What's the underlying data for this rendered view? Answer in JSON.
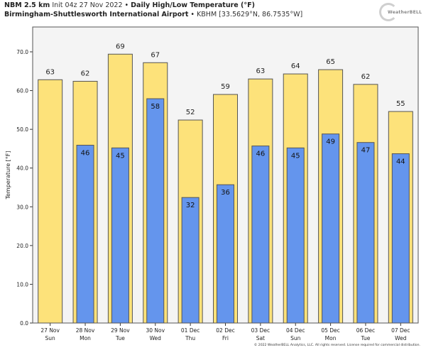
{
  "header": {
    "model": "NBM 2.5 km",
    "init": "Init 04z 27 Nov 2022",
    "separator": "•",
    "product": "Daily High/Low Temperature (°F)",
    "location": "Birmingham-Shuttlesworth International Airport",
    "station": "KBHM [33.5629°N, 86.7535°W]"
  },
  "logo": {
    "text": "WeatherBELL"
  },
  "footer": {
    "copyright": "© 2022 WeatherBELL Analytics, LLC. All rights reserved. License required for commercial distribution."
  },
  "colors": {
    "high": "#fde27a",
    "low": "#6495ed",
    "plot_bg": "#f4f4f4",
    "edge": "#555555"
  },
  "chart_data": {
    "type": "bar",
    "title": "Daily High/Low Temperature (°F)",
    "xlabel": "",
    "ylabel": "Temperature [°F]",
    "ylim": [
      0,
      75
    ],
    "yticks": [
      "0.0",
      "10.0",
      "20.0",
      "30.0",
      "40.0",
      "50.0",
      "60.0",
      "70.0"
    ],
    "categories": [
      "27 Nov",
      "28 Nov",
      "29 Nov",
      "30 Nov",
      "01 Dec",
      "02 Dec",
      "03 Dec",
      "04 Dec",
      "05 Dec",
      "06 Dec",
      "07 Dec"
    ],
    "weekdays": [
      "Sun",
      "Mon",
      "Tue",
      "Wed",
      "Thu",
      "Fri",
      "Sat",
      "Sun",
      "Mon",
      "Tue",
      "Wed"
    ],
    "series": [
      {
        "name": "High",
        "values": [
          62.8,
          62.4,
          69.4,
          67.2,
          52.4,
          59.0,
          63.0,
          64.3,
          65.4,
          61.6,
          54.6
        ],
        "labels": [
          "63",
          "62",
          "69",
          "67",
          "52",
          "59",
          "63",
          "64",
          "65",
          "62",
          "55"
        ]
      },
      {
        "name": "Low",
        "values": [
          null,
          45.9,
          45.2,
          57.9,
          32.4,
          35.7,
          45.7,
          45.2,
          48.8,
          46.6,
          43.7
        ],
        "labels": [
          "",
          "46",
          "45",
          "58",
          "32",
          "36",
          "46",
          "45",
          "49",
          "47",
          "44"
        ]
      }
    ],
    "grid": false,
    "legend": "none"
  }
}
